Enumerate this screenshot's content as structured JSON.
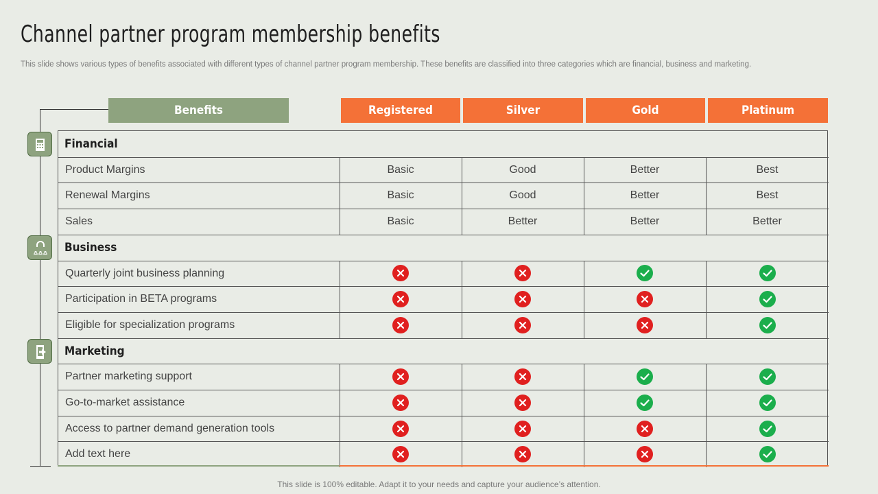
{
  "title": "Channel partner program membership benefits",
  "subtitle": "This slide shows various types of benefits associated with different types of channel partner program membership. These benefits are classified into three categories which are financial, business and marketing.",
  "footer": "This slide is 100% editable. Adapt it to your needs and capture your audience’s attention.",
  "colors": {
    "accent_green": "#8ea37f",
    "accent_orange": "#f47137",
    "check": "#1bae4c",
    "cross": "#e0201f"
  },
  "header": {
    "benefits": "Benefits",
    "tiers": [
      "Registered",
      "Silver",
      "Gold",
      "Platinum"
    ]
  },
  "categories": [
    {
      "name": "Financial",
      "icon": "calculator-icon",
      "rows": [
        {
          "label": "Product Margins",
          "values": [
            "Basic",
            "Good",
            "Better",
            "Best"
          ]
        },
        {
          "label": "Renewal Margins",
          "values": [
            "Basic",
            "Good",
            "Better",
            "Best"
          ]
        },
        {
          "label": "Sales",
          "values": [
            "Basic",
            "Better",
            "Better",
            "Better"
          ]
        }
      ]
    },
    {
      "name": "Business",
      "icon": "team-icon",
      "rows": [
        {
          "label": "Quarterly  joint business planning",
          "values": [
            "cross",
            "cross",
            "check",
            "check"
          ]
        },
        {
          "label": "Participation in BETA programs",
          "values": [
            "cross",
            "cross",
            "cross",
            "check"
          ]
        },
        {
          "label": "Eligible for specialization programs",
          "values": [
            "cross",
            "cross",
            "cross",
            "check"
          ]
        }
      ]
    },
    {
      "name": "Marketing",
      "icon": "mobile-share-icon",
      "rows": [
        {
          "label": "Partner marketing support",
          "values": [
            "cross",
            "cross",
            "check",
            "check"
          ]
        },
        {
          "label": "Go-to-market assistance",
          "values": [
            "cross",
            "cross",
            "check",
            "check"
          ]
        },
        {
          "label": "Access to partner demand generation tools",
          "values": [
            "cross",
            "cross",
            "cross",
            "check"
          ]
        },
        {
          "label": "Add text here",
          "values": [
            "cross",
            "cross",
            "cross",
            "check"
          ]
        }
      ]
    }
  ]
}
